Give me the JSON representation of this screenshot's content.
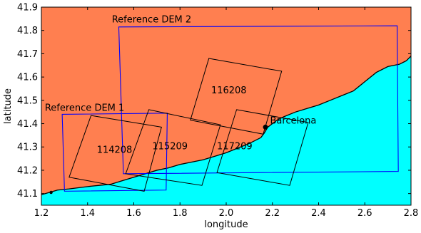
{
  "chart_data": {
    "type": "map",
    "title": "",
    "xlabel": "longitude",
    "ylabel": "latitude",
    "xlim": [
      1.2,
      2.8
    ],
    "ylim": [
      41.05,
      41.9
    ],
    "grid": false,
    "xticks": [
      1.2,
      1.4,
      1.6,
      1.8,
      2.0,
      2.2,
      2.4,
      2.6,
      2.8
    ],
    "xtick_labels": [
      "1.2",
      "1.4",
      "1.6",
      "1.8",
      "2.0",
      "2.2",
      "2.4",
      "2.6",
      "2.8"
    ],
    "yticks": [
      41.1,
      41.2,
      41.3,
      41.4,
      41.5,
      41.6,
      41.7,
      41.8,
      41.9
    ],
    "ytick_labels": [
      "41.1",
      "41.2",
      "41.3",
      "41.4",
      "41.5",
      "41.6",
      "41.7",
      "41.8",
      "41.9"
    ],
    "colors": {
      "land": "#ff7f50",
      "sea": "#00ffff",
      "reference_dem": "#0000ff",
      "footprint": "#000000",
      "coastline": "#000000"
    },
    "coastline": [
      [
        1.2,
        41.095
      ],
      [
        1.235,
        41.105
      ],
      [
        1.27,
        41.115
      ],
      [
        1.32,
        41.12
      ],
      [
        1.36,
        41.125
      ],
      [
        1.4,
        41.13
      ],
      [
        1.45,
        41.135
      ],
      [
        1.5,
        41.14
      ],
      [
        1.55,
        41.155
      ],
      [
        1.6,
        41.17
      ],
      [
        1.65,
        41.185
      ],
      [
        1.7,
        41.2
      ],
      [
        1.75,
        41.21
      ],
      [
        1.8,
        41.225
      ],
      [
        1.85,
        41.235
      ],
      [
        1.9,
        41.245
      ],
      [
        1.95,
        41.26
      ],
      [
        2.0,
        41.275
      ],
      [
        2.05,
        41.295
      ],
      [
        2.1,
        41.315
      ],
      [
        2.15,
        41.34
      ],
      [
        2.165,
        41.36
      ],
      [
        2.18,
        41.385
      ],
      [
        2.2,
        41.4
      ],
      [
        2.22,
        41.415
      ],
      [
        2.25,
        41.43
      ],
      [
        2.3,
        41.45
      ],
      [
        2.35,
        41.465
      ],
      [
        2.4,
        41.48
      ],
      [
        2.45,
        41.5
      ],
      [
        2.5,
        41.52
      ],
      [
        2.55,
        41.54
      ],
      [
        2.6,
        41.58
      ],
      [
        2.65,
        41.62
      ],
      [
        2.7,
        41.645
      ],
      [
        2.75,
        41.655
      ],
      [
        2.78,
        41.67
      ],
      [
        2.8,
        41.69
      ]
    ],
    "reference_dems": [
      {
        "label": "Reference DEM 1",
        "corners": [
          [
            1.29,
            41.44
          ],
          [
            1.745,
            41.445
          ],
          [
            1.74,
            41.115
          ],
          [
            1.3,
            41.11
          ]
        ]
      },
      {
        "label": "Reference DEM 2",
        "corners": [
          [
            1.535,
            41.815
          ],
          [
            2.74,
            41.82
          ],
          [
            2.745,
            41.195
          ],
          [
            1.555,
            41.185
          ]
        ]
      }
    ],
    "footprints": [
      {
        "label": "114208",
        "corners": [
          [
            1.415,
            41.435
          ],
          [
            1.72,
            41.385
          ],
          [
            1.645,
            41.11
          ],
          [
            1.32,
            41.17
          ]
        ]
      },
      {
        "label": "115209",
        "corners": [
          [
            1.665,
            41.46
          ],
          [
            1.975,
            41.395
          ],
          [
            1.895,
            41.135
          ],
          [
            1.565,
            41.185
          ]
        ]
      },
      {
        "label": "116208",
        "corners": [
          [
            1.925,
            41.68
          ],
          [
            2.24,
            41.625
          ],
          [
            2.16,
            41.355
          ],
          [
            1.845,
            41.415
          ]
        ]
      },
      {
        "label": "117209",
        "corners": [
          [
            2.045,
            41.46
          ],
          [
            2.355,
            41.405
          ],
          [
            2.275,
            41.135
          ],
          [
            1.96,
            41.19
          ]
        ]
      }
    ],
    "annotations": [
      {
        "text": "Reference DEM 2",
        "x": 1.505,
        "y": 41.835
      },
      {
        "text": "Reference DEM 1",
        "x": 1.215,
        "y": 41.455
      },
      {
        "text": "116208",
        "x": 1.935,
        "y": 41.53
      },
      {
        "text": "114208",
        "x": 1.44,
        "y": 41.275
      },
      {
        "text": "115209",
        "x": 1.68,
        "y": 41.29
      },
      {
        "text": "117209",
        "x": 1.96,
        "y": 41.29
      },
      {
        "text": "Barcelona",
        "x": 2.19,
        "y": 41.4
      }
    ],
    "points": [
      {
        "name": "Barcelona",
        "x": 2.17,
        "y": 41.385
      },
      {
        "name": "",
        "x": 1.242,
        "y": 41.105
      }
    ]
  }
}
